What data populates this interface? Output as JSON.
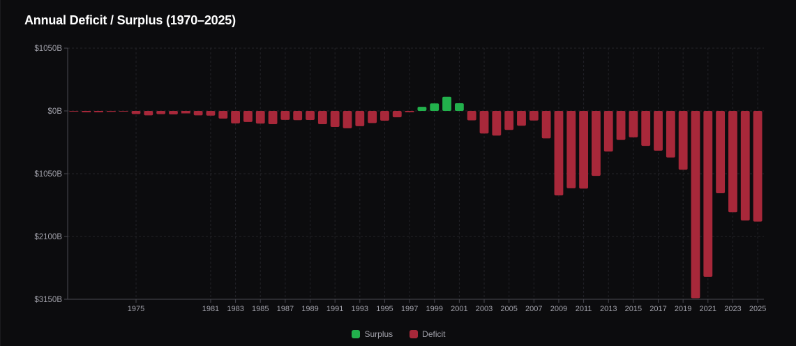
{
  "colors": {
    "surplus": "#22b14c",
    "deficit": "#a8283a",
    "grid": "#232328",
    "axis": "#4a4a52",
    "tick_text": "#a1a1aa"
  },
  "chart_data": {
    "type": "bar",
    "title": "Annual Deficit / Surplus (1970–2025)",
    "xlabel": "",
    "ylabel": "",
    "ylim": [
      -3150,
      1050
    ],
    "y_ticks": [
      1050,
      0,
      -1050,
      -2100,
      -3150
    ],
    "y_tick_labels": [
      "$1050B",
      "$0B",
      "$1050B",
      "$2100B",
      "$3150B"
    ],
    "x_tick_labels": [
      "1975",
      "1981",
      "1983",
      "1985",
      "1987",
      "1989",
      "1991",
      "1993",
      "1995",
      "1997",
      "1999",
      "2001",
      "2003",
      "2005",
      "2007",
      "2009",
      "2011",
      "2013",
      "2015",
      "2017",
      "2019",
      "2021",
      "2023",
      "2025"
    ],
    "legend": [
      {
        "label": "Surplus",
        "color_key": "surplus"
      },
      {
        "label": "Deficit",
        "color_key": "deficit"
      }
    ],
    "legend_position": "bottom-center",
    "grid": true,
    "categories": [
      1970,
      1971,
      1972,
      1973,
      1974,
      1975,
      1976,
      1977,
      1978,
      1979,
      1980,
      1981,
      1982,
      1983,
      1984,
      1985,
      1986,
      1987,
      1988,
      1989,
      1990,
      1991,
      1992,
      1993,
      1994,
      1995,
      1996,
      1997,
      1998,
      1999,
      2000,
      2001,
      2002,
      2003,
      2004,
      2005,
      2006,
      2007,
      2008,
      2009,
      2010,
      2011,
      2012,
      2013,
      2014,
      2015,
      2016,
      2017,
      2018,
      2019,
      2020,
      2021,
      2022,
      2023,
      2024,
      2025
    ],
    "values": [
      -3,
      -23,
      -23,
      -15,
      -6,
      -53,
      -74,
      -54,
      -59,
      -41,
      -74,
      -79,
      -128,
      -208,
      -185,
      -212,
      -221,
      -150,
      -155,
      -152,
      -221,
      -269,
      -290,
      -255,
      -203,
      -164,
      -107,
      -22,
      69,
      126,
      236,
      128,
      -158,
      -378,
      -413,
      -318,
      -248,
      -161,
      -459,
      -1413,
      -1294,
      -1300,
      -1087,
      -680,
      -485,
      -442,
      -585,
      -665,
      -779,
      -984,
      -3132,
      -2775,
      -1376,
      -1695,
      -1833,
      -1850
    ]
  }
}
